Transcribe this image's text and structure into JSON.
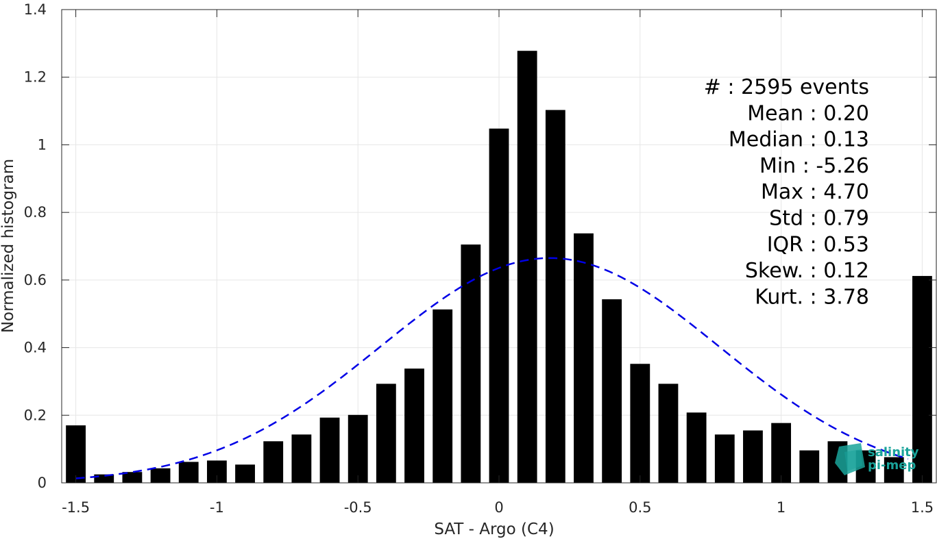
{
  "chart_data": {
    "type": "bar",
    "xlabel": "SAT - Argo (C4)",
    "ylabel": "Normalized histogram",
    "xlim": [
      -1.55,
      1.55
    ],
    "ylim": [
      0,
      1.4
    ],
    "xticks": [
      -1.5,
      -1,
      -0.5,
      0,
      0.5,
      1,
      1.5
    ],
    "xtick_labels": [
      "-1.5",
      "-1",
      "-0.5",
      "0",
      "0.5",
      "1",
      "1.5"
    ],
    "yticks": [
      0,
      0.2,
      0.4,
      0.6,
      0.8,
      1,
      1.2,
      1.4
    ],
    "ytick_labels": [
      "0",
      "0.2",
      "0.4",
      "0.6",
      "0.8",
      "1",
      "1.2",
      "1.4"
    ],
    "grid": true,
    "bar_color": "#000000",
    "bin_width": 0.1,
    "x": [
      -1.5,
      -1.4,
      -1.3,
      -1.2,
      -1.1,
      -1.0,
      -0.9,
      -0.8,
      -0.7,
      -0.6,
      -0.5,
      -0.4,
      -0.3,
      -0.2,
      -0.1,
      0.0,
      0.1,
      0.2,
      0.3,
      0.4,
      0.5,
      0.6,
      0.7,
      0.8,
      0.9,
      1.0,
      1.1,
      1.2,
      1.3,
      1.4,
      1.5
    ],
    "values": [
      0.17,
      0.025,
      0.032,
      0.043,
      0.062,
      0.066,
      0.054,
      0.123,
      0.143,
      0.193,
      0.201,
      0.293,
      0.338,
      0.513,
      0.705,
      1.048,
      1.278,
      1.103,
      0.738,
      0.543,
      0.352,
      0.293,
      0.208,
      0.143,
      0.155,
      0.177,
      0.096,
      0.123,
      0.096,
      0.076,
      0.612
    ],
    "fit": {
      "name": "Gaussian fit",
      "style": "dashed",
      "color": "#0000e6",
      "mean": 0.18,
      "std": 0.6,
      "peak": 0.665,
      "x_range": [
        -1.5,
        1.45
      ]
    },
    "stats": [
      "#  : 2595 events",
      "Mean : 0.20",
      "Median : 0.13",
      "Min : -5.26",
      "Max : 4.70",
      "Std : 0.79",
      "IQR : 0.53",
      "Skew. : 0.12",
      "Kurt. : 3.78"
    ],
    "logo": {
      "line1": "salinity",
      "line2": "pi-mep",
      "color": "#1aa39a"
    }
  }
}
